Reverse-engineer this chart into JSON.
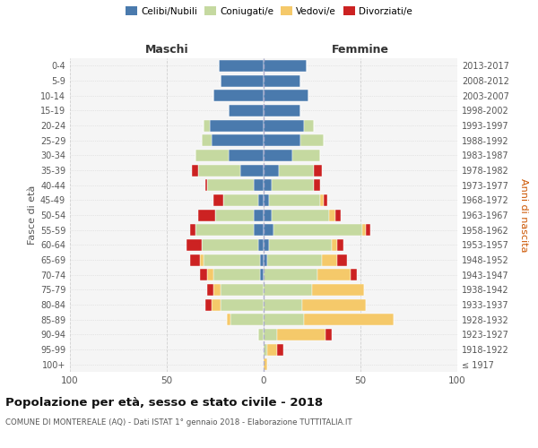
{
  "age_groups": [
    "100+",
    "95-99",
    "90-94",
    "85-89",
    "80-84",
    "75-79",
    "70-74",
    "65-69",
    "60-64",
    "55-59",
    "50-54",
    "45-49",
    "40-44",
    "35-39",
    "30-34",
    "25-29",
    "20-24",
    "15-19",
    "10-14",
    "5-9",
    "0-4"
  ],
  "birth_years": [
    "≤ 1917",
    "1918-1922",
    "1923-1927",
    "1928-1932",
    "1933-1937",
    "1938-1942",
    "1943-1947",
    "1948-1952",
    "1953-1957",
    "1958-1962",
    "1963-1967",
    "1968-1972",
    "1973-1977",
    "1978-1982",
    "1983-1987",
    "1988-1992",
    "1993-1997",
    "1998-2002",
    "2003-2007",
    "2008-2012",
    "2013-2017"
  ],
  "colors": {
    "celibi": "#4a7aad",
    "coniugati": "#c5d9a0",
    "vedovi": "#f5c96a",
    "divorziati": "#cc2222"
  },
  "maschi": {
    "celibi": [
      0,
      0,
      0,
      0,
      0,
      0,
      2,
      2,
      3,
      5,
      5,
      3,
      5,
      12,
      18,
      27,
      28,
      18,
      26,
      22,
      23
    ],
    "coniugati": [
      0,
      0,
      3,
      17,
      22,
      22,
      24,
      29,
      29,
      30,
      20,
      18,
      24,
      22,
      17,
      5,
      3,
      0,
      0,
      0,
      0
    ],
    "vedovi": [
      0,
      0,
      0,
      2,
      5,
      4,
      3,
      2,
      0,
      0,
      0,
      0,
      0,
      0,
      0,
      0,
      0,
      0,
      0,
      0,
      0
    ],
    "divorziati": [
      0,
      0,
      0,
      0,
      3,
      3,
      4,
      5,
      8,
      3,
      9,
      5,
      1,
      3,
      0,
      0,
      0,
      0,
      0,
      0,
      0
    ]
  },
  "femmine": {
    "celibi": [
      0,
      0,
      0,
      0,
      0,
      0,
      0,
      2,
      3,
      5,
      4,
      3,
      4,
      8,
      15,
      19,
      21,
      19,
      23,
      19,
      22
    ],
    "coniugati": [
      0,
      2,
      7,
      21,
      20,
      25,
      28,
      28,
      32,
      46,
      30,
      26,
      22,
      18,
      14,
      12,
      5,
      0,
      0,
      0,
      0
    ],
    "vedovi": [
      2,
      5,
      25,
      46,
      33,
      27,
      17,
      8,
      3,
      2,
      3,
      2,
      0,
      0,
      0,
      0,
      0,
      0,
      0,
      0,
      0
    ],
    "divorziati": [
      0,
      3,
      3,
      0,
      0,
      0,
      3,
      5,
      3,
      2,
      3,
      2,
      3,
      4,
      0,
      0,
      0,
      0,
      0,
      0,
      0
    ]
  },
  "title": "Popolazione per età, sesso e stato civile - 2018",
  "subtitle": "COMUNE DI MONTEREALE (AQ) - Dati ISTAT 1° gennaio 2018 - Elaborazione TUTTITALIA.IT",
  "xlabel_left": "Maschi",
  "xlabel_right": "Femmine",
  "ylabel_left": "Fasce di età",
  "ylabel_right": "Anni di nascita",
  "xlim": 100,
  "legend_labels": [
    "Celibi/Nubili",
    "Coniugati/e",
    "Vedovi/e",
    "Divorziati/e"
  ],
  "bg_color": "#ffffff",
  "grid_color": "#cccccc",
  "ax_bg_color": "#f5f5f5"
}
